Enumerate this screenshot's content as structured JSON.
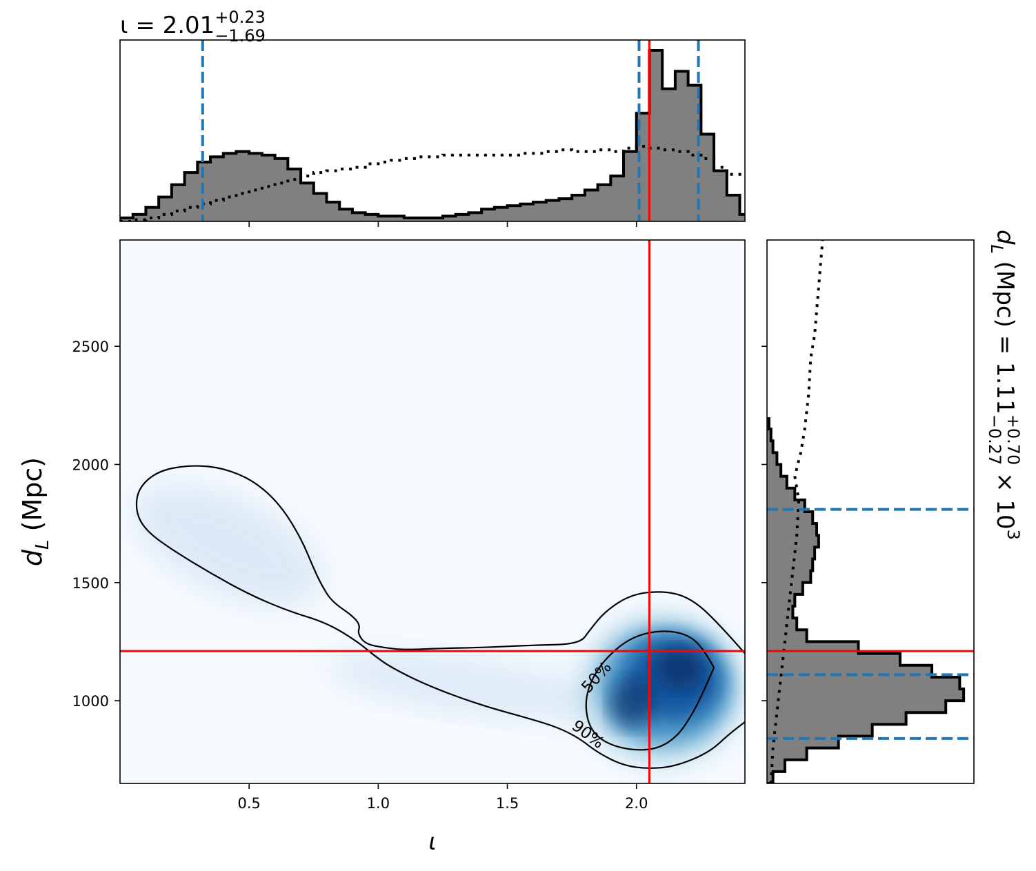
{
  "chart_data": {
    "type": "corner",
    "parameters": {
      "x": {
        "symbol": "ι",
        "xlabel": "ι",
        "xlim": [
          0.0,
          2.42
        ],
        "ticks": [
          0.5,
          1.0,
          1.5,
          2.0
        ],
        "tick_labels": [
          "0.5",
          "1.0",
          "1.5",
          "2.0"
        ]
      },
      "y": {
        "symbol": "dL",
        "ylabel_main": "d",
        "ylabel_sub": "L",
        "ylabel_unit": "(Mpc)",
        "ylim": [
          650,
          2950
        ],
        "ticks": [
          1000,
          1500,
          2000,
          2500
        ],
        "tick_labels": [
          "1000",
          "1500",
          "2000",
          "2500"
        ]
      }
    },
    "summary_iota": {
      "prefix": "ι = ",
      "median": "2.01",
      "plus": "+0.23",
      "minus": "−1.69",
      "lo": 0.32,
      "med": 2.01,
      "hi": 2.24
    },
    "summary_dl": {
      "prefix_main": "d",
      "prefix_sub": "L",
      "prefix_rest": " (Mpc) = ",
      "median": "1.11",
      "plus": "+0.70",
      "minus": "−0.27",
      "scale": " × 10",
      "exponent": "3",
      "lo": 840,
      "med": 1110,
      "hi": 1810
    },
    "true_value": {
      "iota": 2.05,
      "dL": 1210,
      "color": "#ff0000"
    },
    "colors": {
      "credible_line": "#1f77b4",
      "hist_fill": "#808080",
      "cmap_low": "#f7fbff",
      "cmap_high": "#08306b"
    },
    "iota_hist": {
      "bins": [
        0.0,
        0.05,
        0.1,
        0.15,
        0.2,
        0.25,
        0.3,
        0.35,
        0.4,
        0.45,
        0.5,
        0.55,
        0.6,
        0.65,
        0.7,
        0.75,
        0.8,
        0.85,
        0.9,
        0.95,
        1.0,
        1.05,
        1.1,
        1.15,
        1.2,
        1.25,
        1.3,
        1.35,
        1.4,
        1.45,
        1.5,
        1.55,
        1.6,
        1.65,
        1.7,
        1.75,
        1.8,
        1.85,
        1.9,
        1.95,
        2.0,
        2.05,
        2.1,
        2.15,
        2.2,
        2.25,
        2.3,
        2.35,
        2.4
      ],
      "posterior": [
        0.02,
        0.04,
        0.08,
        0.14,
        0.21,
        0.28,
        0.34,
        0.37,
        0.39,
        0.4,
        0.39,
        0.38,
        0.36,
        0.3,
        0.22,
        0.16,
        0.11,
        0.07,
        0.05,
        0.04,
        0.03,
        0.03,
        0.02,
        0.02,
        0.02,
        0.03,
        0.04,
        0.05,
        0.07,
        0.08,
        0.09,
        0.1,
        0.11,
        0.12,
        0.13,
        0.15,
        0.18,
        0.21,
        0.26,
        0.4,
        0.62,
        0.98,
        0.76,
        0.86,
        0.78,
        0.5,
        0.29,
        0.15,
        0.04
      ],
      "prior": [
        0.0,
        0.01,
        0.02,
        0.04,
        0.06,
        0.08,
        0.1,
        0.12,
        0.14,
        0.16,
        0.18,
        0.2,
        0.22,
        0.24,
        0.26,
        0.28,
        0.29,
        0.3,
        0.31,
        0.33,
        0.34,
        0.35,
        0.36,
        0.37,
        0.37,
        0.38,
        0.38,
        0.38,
        0.38,
        0.38,
        0.38,
        0.39,
        0.39,
        0.4,
        0.41,
        0.4,
        0.4,
        0.41,
        0.4,
        0.42,
        0.43,
        0.42,
        0.41,
        0.4,
        0.38,
        0.36,
        0.31,
        0.27,
        0.27
      ]
    },
    "dl_hist": {
      "bins": [
        650,
        700,
        750,
        800,
        850,
        900,
        950,
        1000,
        1050,
        1100,
        1150,
        1200,
        1250,
        1300,
        1350,
        1400,
        1450,
        1500,
        1550,
        1600,
        1650,
        1700,
        1750,
        1800,
        1850,
        1900,
        1950,
        2000,
        2050,
        2100,
        2150,
        2200
      ],
      "posterior": [
        0.03,
        0.09,
        0.2,
        0.36,
        0.53,
        0.7,
        0.9,
        0.99,
        0.97,
        0.83,
        0.67,
        0.46,
        0.2,
        0.15,
        0.13,
        0.14,
        0.18,
        0.22,
        0.23,
        0.24,
        0.26,
        0.25,
        0.23,
        0.19,
        0.14,
        0.1,
        0.07,
        0.05,
        0.03,
        0.02,
        0.01
      ],
      "prior": {
        "d": [
          650,
          800,
          950,
          1100,
          1250,
          1400,
          1550,
          1700,
          1850,
          1950,
          2050,
          2150,
          2300,
          2450,
          2550,
          2650,
          2750,
          2850,
          2950
        ],
        "v": [
          0.02,
          0.03,
          0.05,
          0.07,
          0.09,
          0.11,
          0.13,
          0.15,
          0.16,
          0.14,
          0.17,
          0.19,
          0.21,
          0.22,
          0.24,
          0.25,
          0.26,
          0.27,
          0.28
        ]
      }
    },
    "contours": [
      {
        "label": "50%",
        "label_at": [
          1.86,
          1085
        ],
        "label_angle": -48
      },
      {
        "label": "90%",
        "label_at": [
          1.8,
          840
        ],
        "label_angle": 37
      }
    ]
  }
}
